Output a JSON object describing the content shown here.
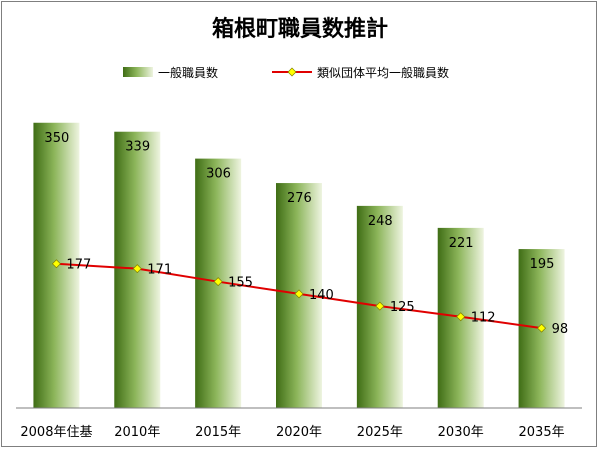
{
  "chart_data": {
    "type": "bar+line",
    "title": "箱根町職員数推計",
    "categories": [
      "2008年住基",
      "2010年",
      "2015年",
      "2020年",
      "2025年",
      "2030年",
      "2035年"
    ],
    "series": [
      {
        "name": "一般職員数",
        "type": "bar",
        "values": [
          350,
          339,
          306,
          276,
          248,
          221,
          195
        ],
        "color": "#4a7a1e"
      },
      {
        "name": "類似団体平均一般職員数",
        "type": "line",
        "values": [
          177,
          171,
          155,
          140,
          125,
          112,
          98
        ],
        "color": "#e00000",
        "marker_color": "#ffff00"
      }
    ],
    "ylim": [
      0,
      370
    ],
    "grid": false,
    "legend_position": "top",
    "xlabel": "",
    "ylabel": ""
  }
}
